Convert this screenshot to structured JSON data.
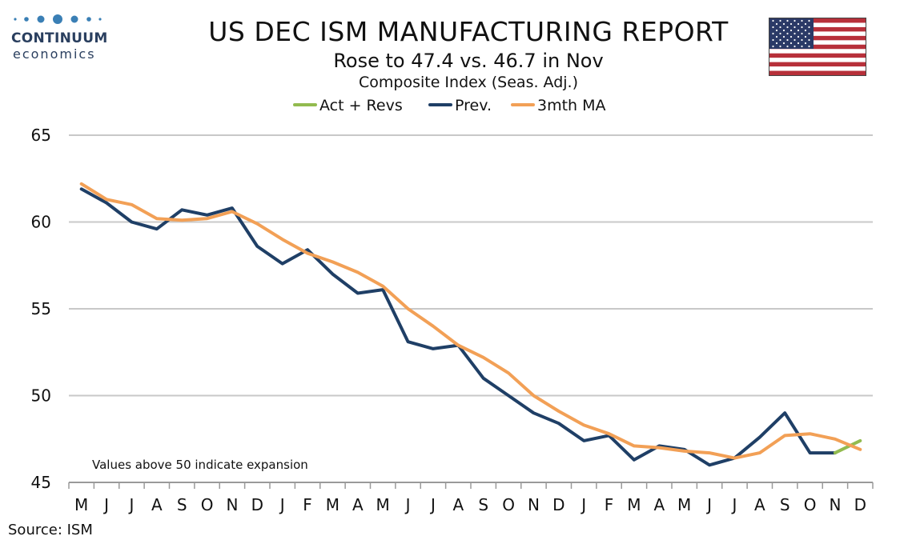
{
  "header": {
    "logo_name": "CONTINUUM",
    "logo_sub": "economics",
    "title": "US DEC ISM MANUFACTURING REPORT",
    "subtitle": "Rose to 47.4 vs. 46.7 in Nov",
    "subtitle2": "Composite Index (Seas. Adj.)",
    "flag_icon": "us-flag-icon"
  },
  "colors": {
    "act": "#92bb4f",
    "prev": "#1f3f66",
    "ma": "#f2a056",
    "grid": "#c8c8c8"
  },
  "chart_data": {
    "type": "line",
    "categories": [
      "M",
      "J",
      "J",
      "A",
      "S",
      "O",
      "N",
      "D",
      "J",
      "F",
      "M",
      "A",
      "M",
      "J",
      "J",
      "A",
      "S",
      "O",
      "N",
      "D",
      "J",
      "F",
      "M",
      "A",
      "M",
      "J",
      "J",
      "A",
      "S",
      "O",
      "N",
      "D"
    ],
    "ylim": [
      45,
      65
    ],
    "yticks": [
      45,
      50,
      55,
      60,
      65
    ],
    "grid": true,
    "legend_position": "top-center",
    "annotation": "Values above 50 indicate expansion",
    "source": "Source: ISM",
    "series": [
      {
        "name": "Act + Revs",
        "key": "act",
        "values": [
          null,
          null,
          null,
          null,
          null,
          null,
          null,
          null,
          null,
          null,
          null,
          null,
          null,
          null,
          null,
          null,
          null,
          null,
          null,
          null,
          null,
          null,
          null,
          null,
          null,
          null,
          null,
          null,
          null,
          null,
          46.7,
          47.4
        ]
      },
      {
        "name": "Prev.",
        "key": "prev",
        "values": [
          61.9,
          61.1,
          60.0,
          59.6,
          60.7,
          60.4,
          60.8,
          58.6,
          57.6,
          58.4,
          57.0,
          55.9,
          56.1,
          53.1,
          52.7,
          52.9,
          51.0,
          50.0,
          49.0,
          48.4,
          47.4,
          47.7,
          46.3,
          47.1,
          46.9,
          46.0,
          46.4,
          47.6,
          49.0,
          46.7,
          46.7,
          null
        ]
      },
      {
        "name": "3mth MA",
        "key": "ma",
        "values": [
          62.2,
          61.3,
          61.0,
          60.2,
          60.1,
          60.2,
          60.6,
          59.9,
          59.0,
          58.2,
          57.7,
          57.1,
          56.3,
          55.0,
          54.0,
          52.9,
          52.2,
          51.3,
          50.0,
          49.1,
          48.3,
          47.8,
          47.1,
          47.0,
          46.8,
          46.7,
          46.4,
          46.7,
          47.7,
          47.8,
          47.5,
          46.9
        ]
      }
    ]
  }
}
